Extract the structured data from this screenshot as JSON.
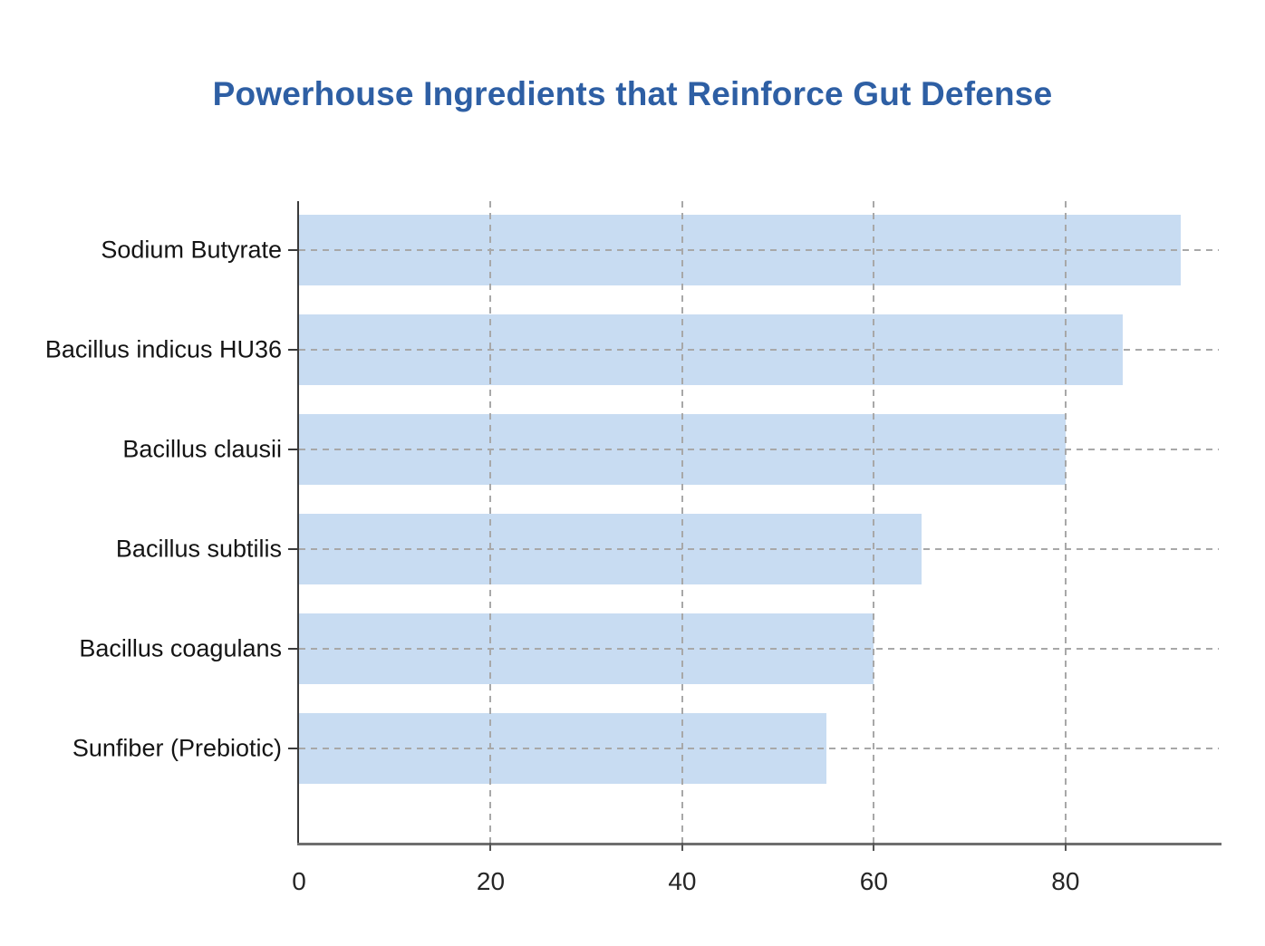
{
  "chart_data": {
    "type": "bar",
    "orientation": "horizontal",
    "title": "Powerhouse Ingredients that Reinforce Gut Defense",
    "categories": [
      "Sodium Butyrate",
      "Bacillus indicus HU36",
      "Bacillus clausii",
      "Bacillus subtilis",
      "Bacillus coagulans",
      "Sunfiber (Prebiotic)"
    ],
    "values": [
      92,
      86,
      80,
      65,
      60,
      55
    ],
    "x_ticks": [
      0,
      20,
      40,
      60,
      80
    ],
    "xlim": [
      0,
      96
    ],
    "xlabel": "",
    "ylabel": "",
    "grid": "dashed",
    "legend": "none",
    "colors": {
      "bar_fill": "#c8dcf2",
      "title": "#2e5fa4",
      "grid_line": "#a8a8a8",
      "axis_line_y": "#3a3a3a",
      "axis_line_x": "#6e6e6e",
      "tick_label": "#262626",
      "category_label": "#141414",
      "background": "#ffffff"
    }
  }
}
